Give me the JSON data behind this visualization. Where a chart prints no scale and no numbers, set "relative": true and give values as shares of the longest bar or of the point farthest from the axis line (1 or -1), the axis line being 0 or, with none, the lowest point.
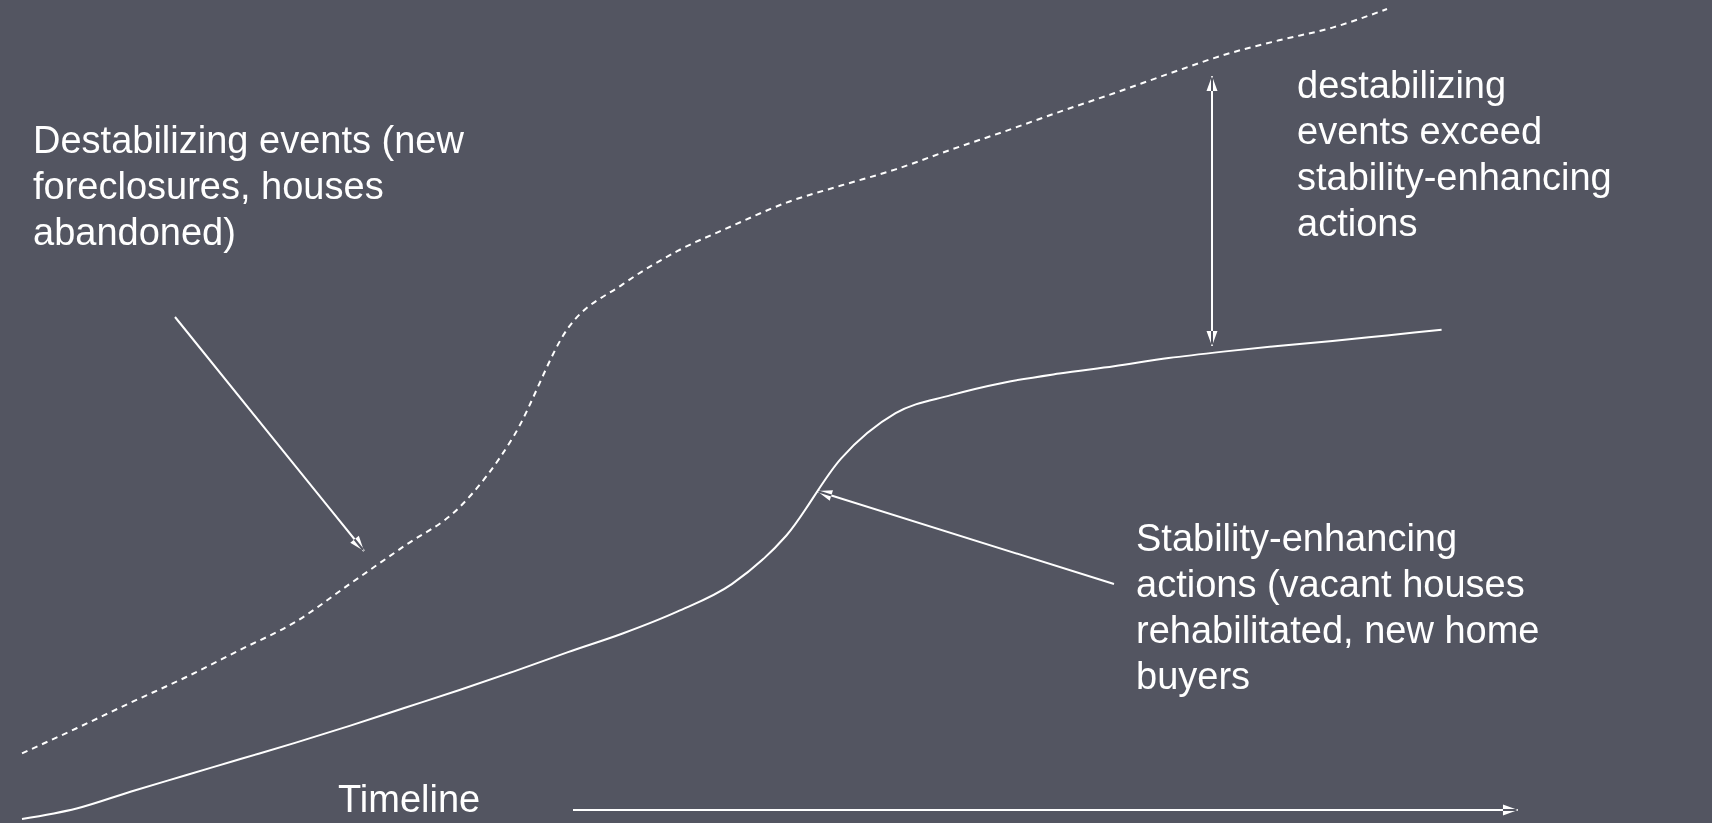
{
  "chart_data": {
    "type": "line",
    "relative": true,
    "xlabel": "Timeline",
    "categories": [
      null,
      null,
      null,
      null,
      null,
      null,
      null,
      null,
      null,
      null,
      null,
      null,
      null,
      null,
      null,
      null,
      null,
      null,
      null,
      null,
      null,
      null,
      null,
      null,
      null,
      null,
      null
    ],
    "series": [
      {
        "color": "#ffffff",
        "line_style": "dashed",
        "values": [
          0.081,
          0.112,
          0.144,
          0.175,
          0.209,
          0.243,
          0.29,
          0.337,
          0.384,
          0.472,
          0.606,
          0.66,
          0.701,
          0.732,
          0.761,
          0.782,
          0.802,
          0.826,
          0.849,
          0.873,
          0.896,
          0.92,
          0.943,
          0.961,
          0.977,
          1,
          null
        ]
      },
      {
        "color": "#ffffff",
        "line_style": "solid",
        "values": [
          0,
          0.013,
          0.034,
          0.054,
          0.074,
          0.094,
          0.115,
          0.137,
          0.159,
          0.182,
          0.206,
          0.229,
          0.256,
          0.29,
          0.35,
          0.445,
          0.501,
          0.523,
          0.539,
          0.55,
          0.559,
          0.569,
          0.577,
          0.584,
          0.59,
          0.597,
          0.604
        ]
      }
    ],
    "annotations": [
      "Destabilizing events (new foreclosures, houses abandoned)",
      "destabilizing events exceed stability-enhancing actions",
      "Stability-enhancing actions (vacant houses rehabilitated, new home buyers"
    ]
  }
}
